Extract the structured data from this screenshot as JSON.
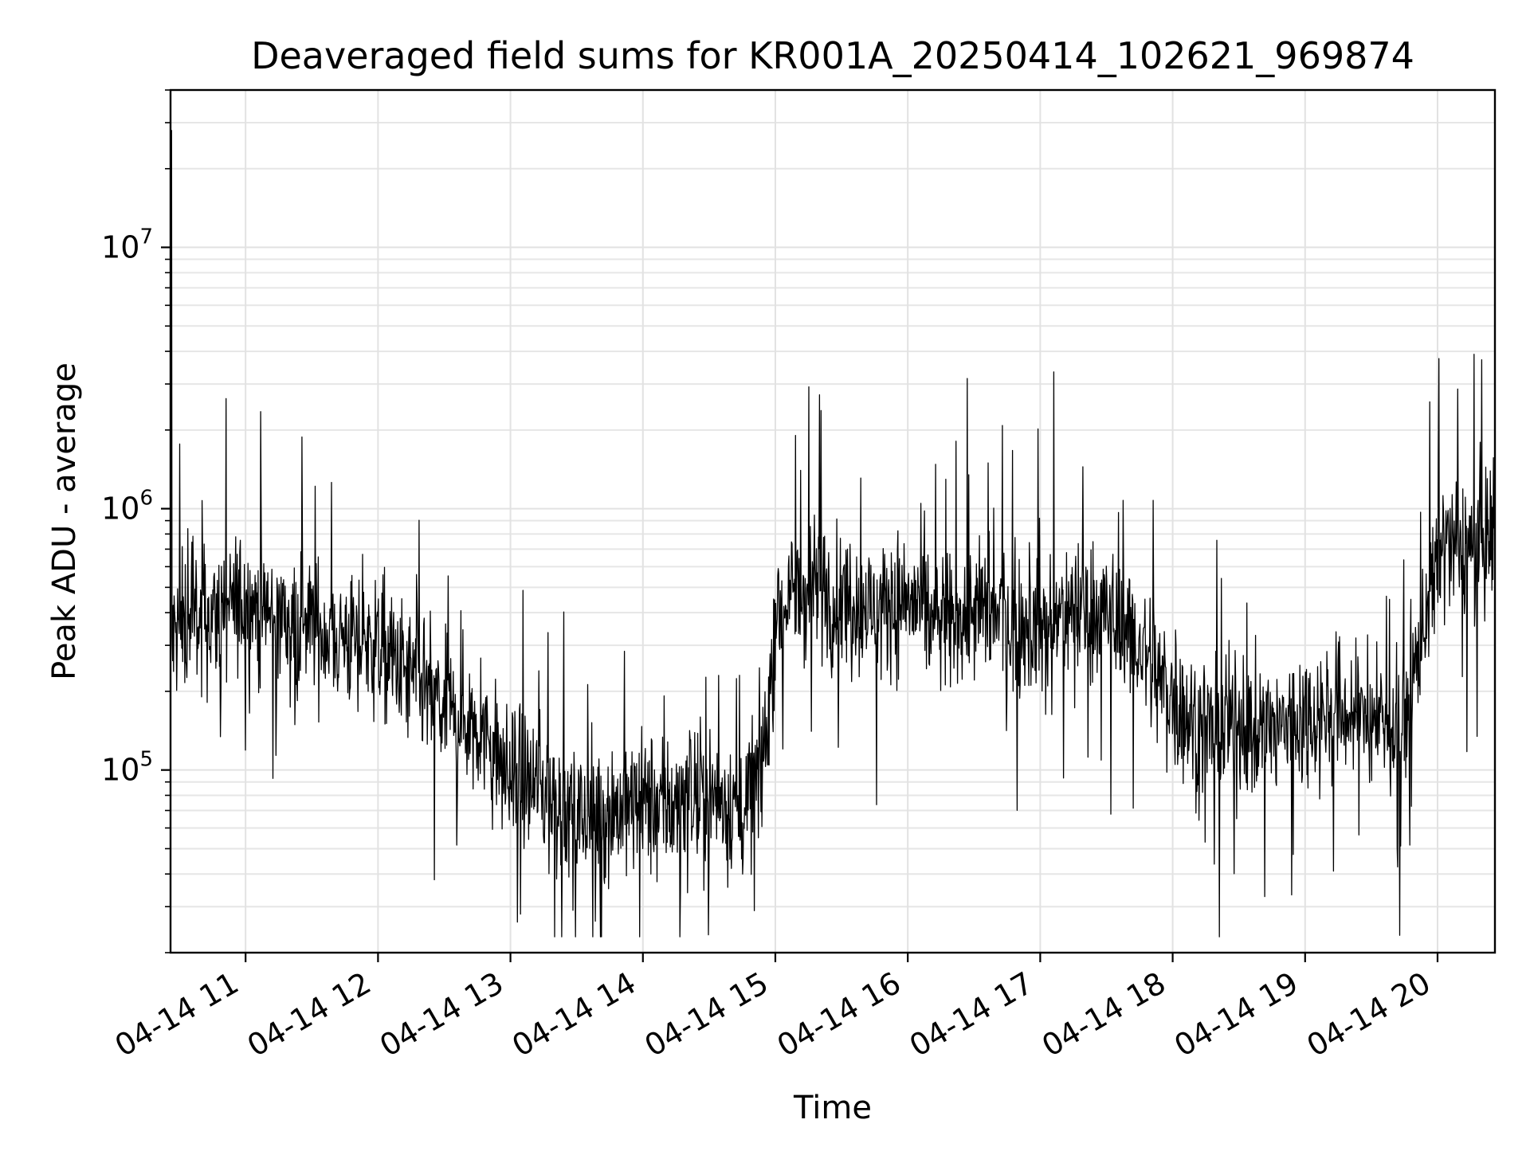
{
  "chart_data": {
    "type": "line",
    "title": "Deaveraged field sums for KR001A_20250414_102621_969874",
    "xlabel": "Time",
    "ylabel": "Peak ADU - average",
    "y_scale": "log",
    "ylim": [
      20000,
      40000000
    ],
    "xlim": [
      "04-14 10:26",
      "04-14 20:26"
    ],
    "grid": true,
    "line_color": "#000000",
    "x_tick_labels": [
      "04-14 11",
      "04-14 12",
      "04-14 13",
      "04-14 14",
      "04-14 15",
      "04-14 16",
      "04-14 17",
      "04-14 18",
      "04-14 19",
      "04-14 20"
    ],
    "y_tick_labels": [
      {
        "base": "10",
        "exp": "5",
        "value": 100000
      },
      {
        "base": "10",
        "exp": "6",
        "value": 1000000
      },
      {
        "base": "10",
        "exp": "7",
        "value": 10000000
      }
    ],
    "series": [
      {
        "x": [
          "04-14 10:26",
          "04-14 10:30",
          "04-14 10:45",
          "04-14 11:00",
          "04-14 11:15",
          "04-14 11:30",
          "04-14 11:45",
          "04-14 12:00",
          "04-14 12:15",
          "04-14 12:30",
          "04-14 12:45",
          "04-14 13:00",
          "04-14 13:15",
          "04-14 13:30",
          "04-14 13:45",
          "04-14 14:00",
          "04-14 14:15",
          "04-14 14:30",
          "04-14 14:45",
          "04-14 14:55",
          "04-14 15:00",
          "04-14 15:15",
          "04-14 15:30",
          "04-14 15:45",
          "04-14 16:00",
          "04-14 16:15",
          "04-14 16:30",
          "04-14 16:45",
          "04-14 17:00",
          "04-14 17:15",
          "04-14 17:30",
          "04-14 17:45",
          "04-14 18:00",
          "04-14 18:15",
          "04-14 18:30",
          "04-14 18:45",
          "04-14 19:00",
          "04-14 19:15",
          "04-14 19:30",
          "04-14 19:45",
          "04-14 20:00",
          "04-14 20:15",
          "04-14 20:26"
        ],
        "y": [
          300000,
          350000,
          380000,
          450000,
          380000,
          350000,
          320000,
          300000,
          220000,
          170000,
          150000,
          90000,
          85000,
          65000,
          70000,
          75000,
          72000,
          80000,
          70000,
          110000,
          400000,
          500000,
          450000,
          400000,
          450000,
          350000,
          400000,
          380000,
          350000,
          420000,
          400000,
          300000,
          180000,
          140000,
          150000,
          140000,
          160000,
          170000,
          150000,
          140000,
          700000,
          700000,
          800000
        ]
      }
    ]
  }
}
